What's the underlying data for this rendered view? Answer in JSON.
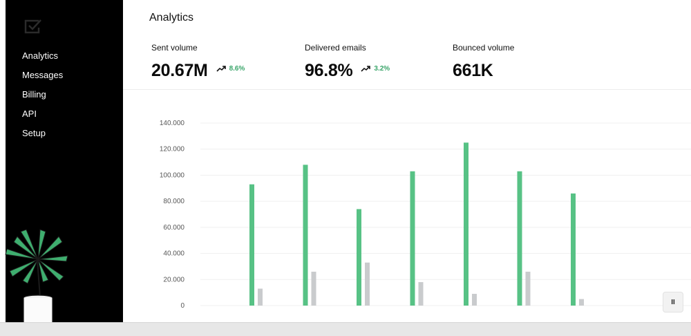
{
  "sidebar": {
    "logo_icon": "check-box-icon",
    "items": [
      {
        "label": "Analytics"
      },
      {
        "label": "Messages"
      },
      {
        "label": "Billing"
      },
      {
        "label": "API"
      },
      {
        "label": "Setup"
      }
    ]
  },
  "header": {
    "title": "Analytics"
  },
  "stats": [
    {
      "label": "Sent volume",
      "value": "20.67M",
      "trend": "8.6%"
    },
    {
      "label": "Delivered emails",
      "value": "96.8%",
      "trend": "3.2%"
    },
    {
      "label": "Bounced volume",
      "value": "661K",
      "trend": ""
    }
  ],
  "colors": {
    "accent": "#57c285",
    "secondary": "#c9cbcd",
    "trend": "#3aa56a"
  },
  "controls": {
    "pause_icon": "pause-icon",
    "pause_label": "II"
  },
  "chart_data": {
    "type": "bar",
    "categories": [
      "",
      "",
      "",
      "",
      "",
      "",
      ""
    ],
    "series": [
      {
        "values": [
          93000,
          108000,
          74000,
          103000,
          125000,
          103000,
          86000
        ]
      },
      {
        "values": [
          13000,
          26000,
          33000,
          18000,
          9000,
          26000,
          5000
        ]
      }
    ],
    "yticks": [
      "0",
      "20.000",
      "40.000",
      "60.000",
      "80.000",
      "100.000",
      "120.000",
      "140.000"
    ],
    "ylim": [
      0,
      140000
    ],
    "grid": true,
    "title": "",
    "xlabel": "",
    "ylabel": ""
  }
}
